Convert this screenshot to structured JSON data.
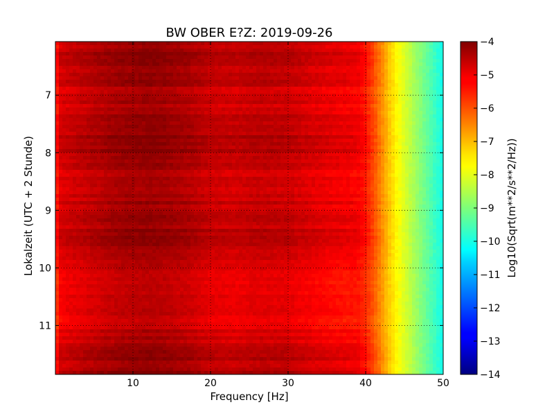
{
  "chart_data": {
    "type": "heatmap",
    "title": "BW OBER E?Z: 2019-09-26",
    "xlabel": "Frequency [Hz]",
    "ylabel": "Lokalzeit (UTC + 2 Stunde)",
    "xlim": [
      0,
      50
    ],
    "ylim": [
      11.85,
      6.07
    ],
    "xticks": [
      10,
      20,
      30,
      40,
      50
    ],
    "yticks": [
      7,
      8,
      9,
      10,
      11
    ],
    "grid": true,
    "colormap": "jet",
    "colorbar": {
      "label": "Log10(Sqrt(m**2/s**2/Hz))",
      "range": [
        -14,
        -4
      ],
      "ticks": [
        -4,
        -5,
        -6,
        -7,
        -8,
        -9,
        -10,
        -11,
        -12,
        -13,
        -14
      ]
    },
    "frequency_profile": {
      "frequency_hz": [
        0,
        0.5,
        2,
        5,
        8,
        10,
        12,
        14,
        17,
        20,
        23,
        26,
        30,
        33,
        36,
        39,
        40,
        41,
        42,
        43,
        44,
        45,
        46,
        47,
        48,
        49,
        50
      ],
      "log10_amplitude": [
        -5.9,
        -5.0,
        -4.85,
        -4.65,
        -4.45,
        -4.4,
        -4.35,
        -4.4,
        -4.55,
        -4.8,
        -4.85,
        -4.75,
        -4.8,
        -5.0,
        -5.15,
        -5.25,
        -5.5,
        -6.0,
        -6.6,
        -7.2,
        -7.7,
        -8.1,
        -8.5,
        -8.9,
        -9.3,
        -9.7,
        -10.1
      ]
    },
    "time_profile": {
      "local_time_h": [
        6.07,
        6.4,
        6.7,
        7.0,
        7.3,
        7.6,
        7.9,
        8.2,
        8.5,
        8.8,
        9.1,
        9.4,
        9.7,
        10.0,
        10.3,
        10.6,
        10.9,
        11.2,
        11.5,
        11.85
      ],
      "log10_offset": [
        0.2,
        0.25,
        0.15,
        -0.05,
        0.05,
        0.25,
        0.3,
        0.2,
        -0.1,
        0.05,
        0.1,
        0.2,
        0.15,
        -0.15,
        -0.25,
        -0.2,
        -0.25,
        -0.05,
        0.2,
        0.25
      ]
    }
  }
}
